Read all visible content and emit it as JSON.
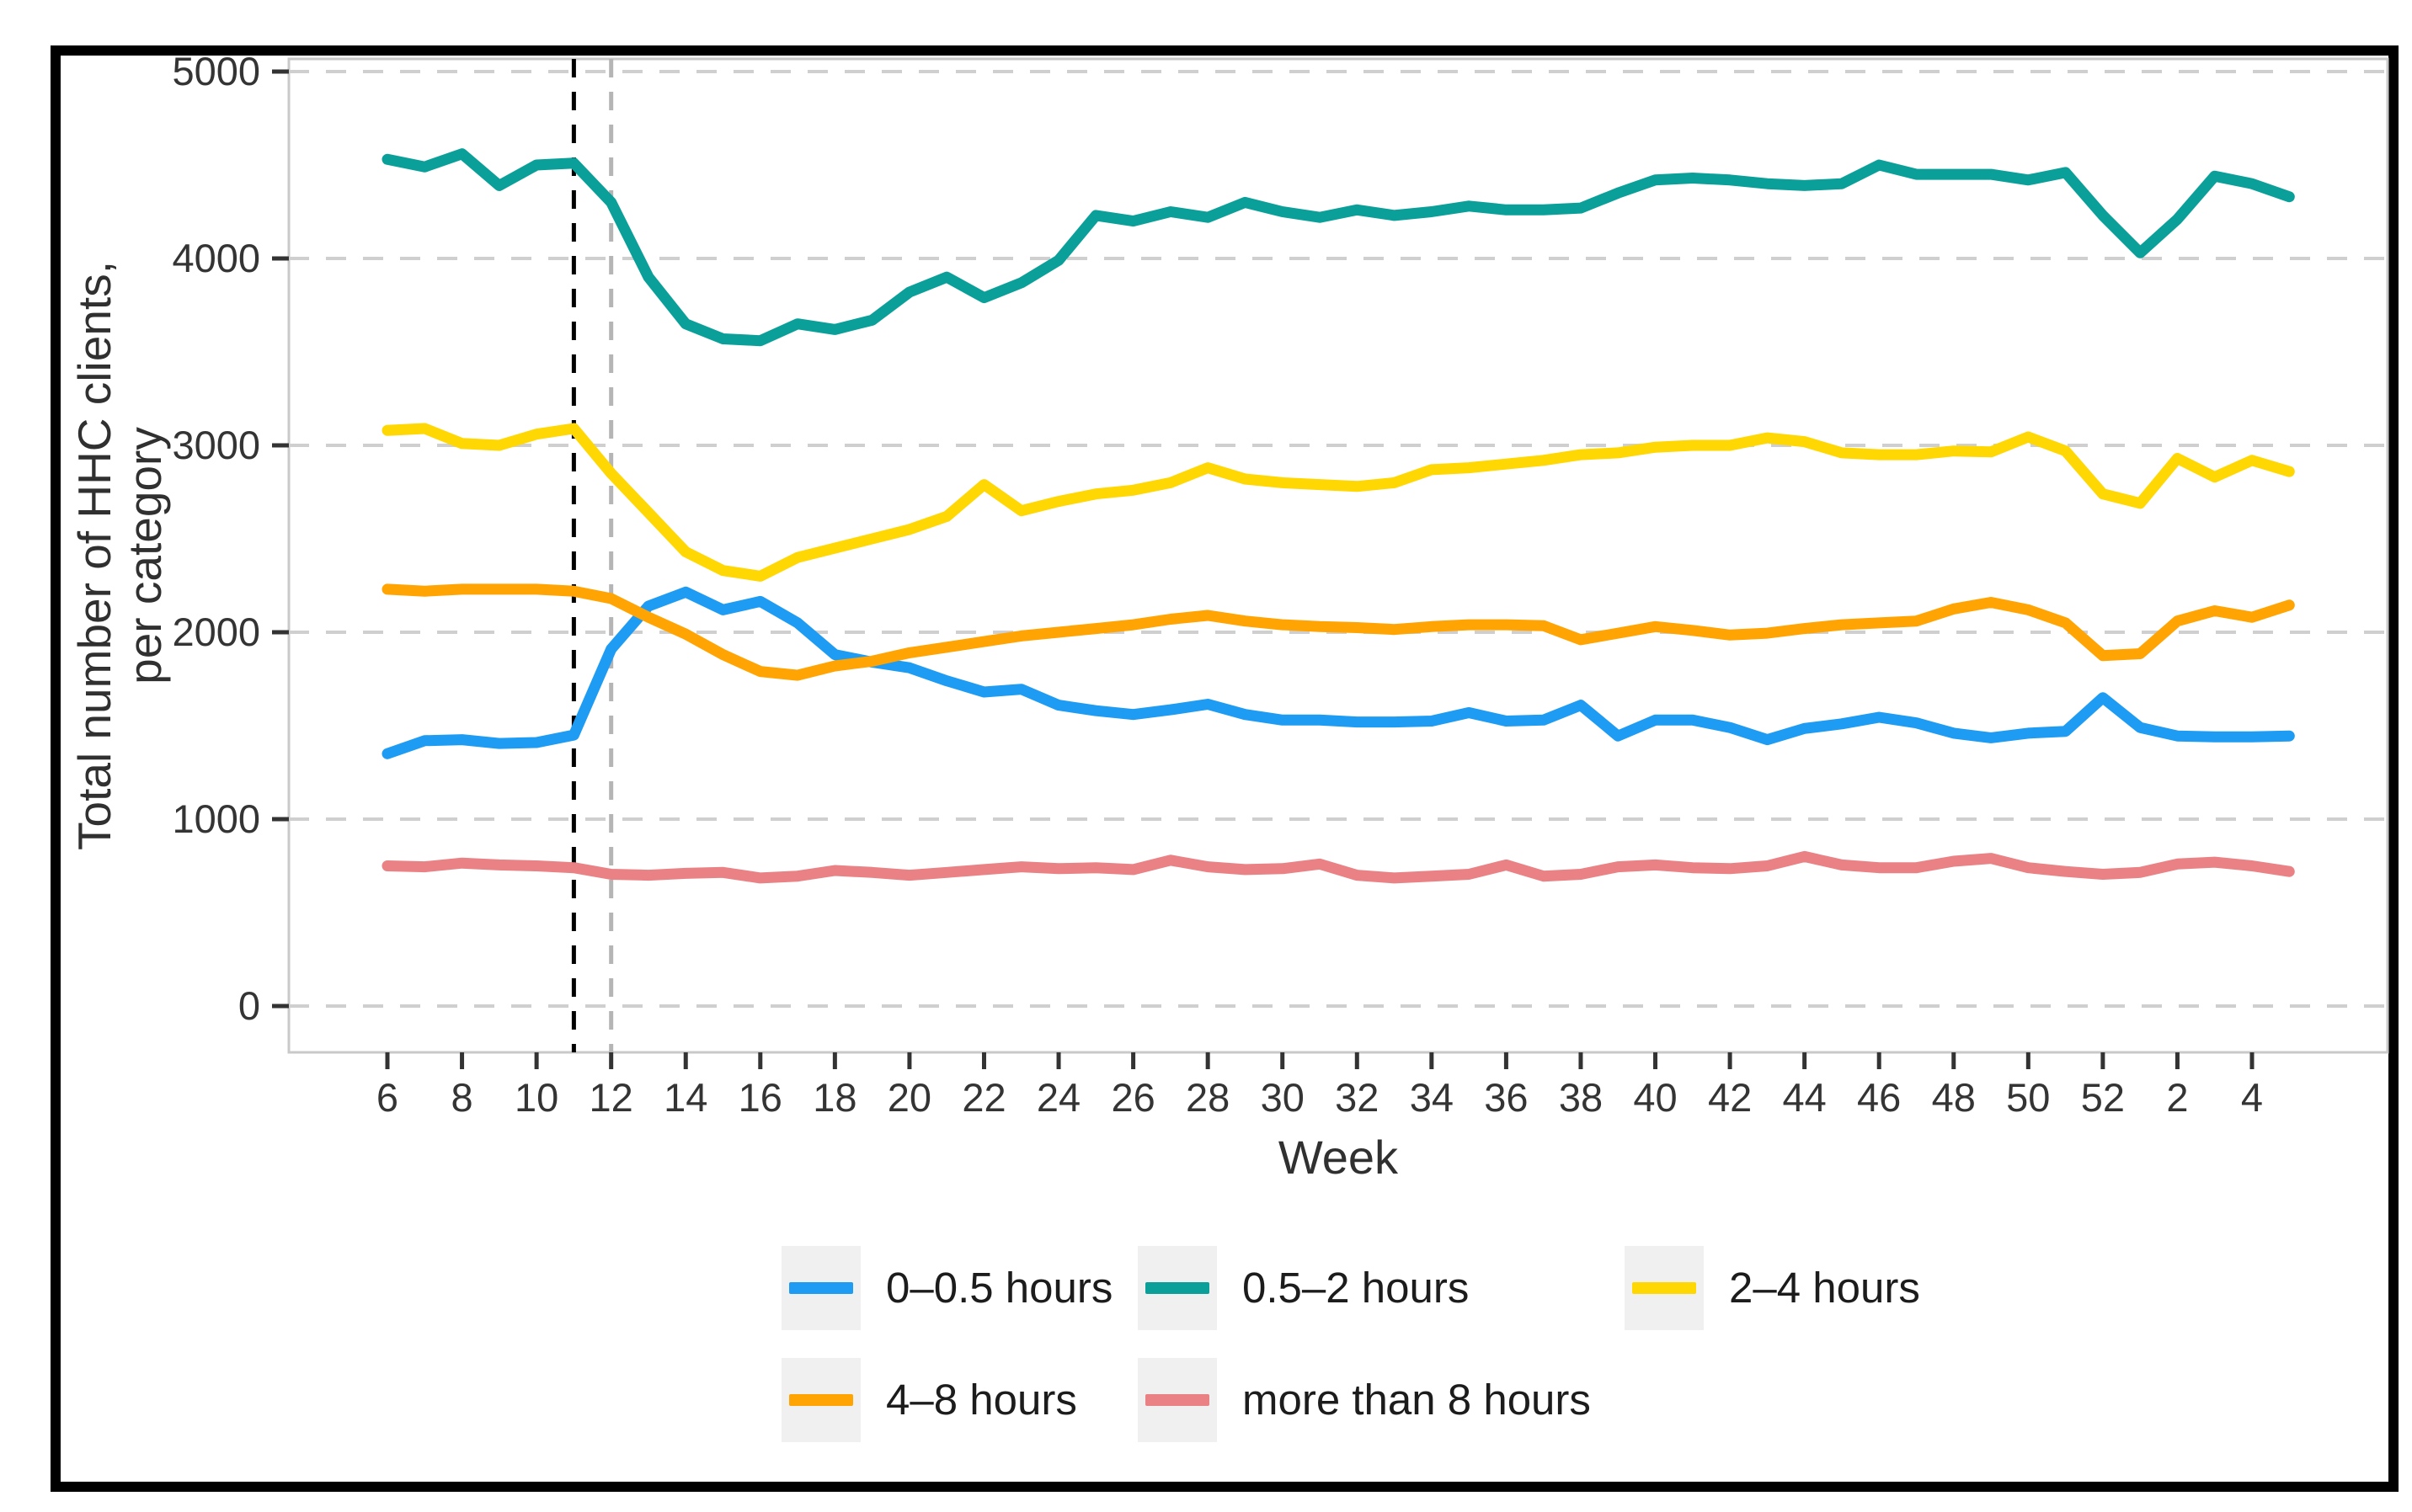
{
  "figure": {
    "xlabel": "Week",
    "ylabel_line1": "Total number of HHC clients,",
    "ylabel_line2": "per category"
  },
  "chart_data": {
    "type": "line",
    "title": "",
    "xlabel": "Week",
    "ylabel": "Total number of HHC clients, per category",
    "x": [
      "6",
      "7",
      "8",
      "9",
      "10",
      "11",
      "12",
      "13",
      "14",
      "15",
      "16",
      "17",
      "18",
      "19",
      "20",
      "21",
      "22",
      "23",
      "24",
      "25",
      "26",
      "27",
      "28",
      "29",
      "30",
      "31",
      "32",
      "33",
      "34",
      "35",
      "36",
      "37",
      "38",
      "39",
      "40",
      "41",
      "42",
      "43",
      "44",
      "45",
      "46",
      "47",
      "48",
      "49",
      "50",
      "51",
      "52",
      "1",
      "2",
      "3",
      "4",
      "5"
    ],
    "x_tick_labels": [
      "6",
      "8",
      "10",
      "12",
      "14",
      "16",
      "18",
      "20",
      "22",
      "24",
      "26",
      "28",
      "30",
      "32",
      "34",
      "36",
      "38",
      "40",
      "42",
      "44",
      "46",
      "48",
      "50",
      "52",
      "2",
      "4"
    ],
    "yticks": [
      0,
      1000,
      2000,
      3000,
      4000,
      5000
    ],
    "ylim": [
      0,
      5000
    ],
    "grid": "horizontal-dashed",
    "legend_position": "bottom",
    "event_lines": [
      {
        "x": "11",
        "color": "#000000",
        "style": "dashed"
      },
      {
        "x": "12",
        "color": "#b5b5b5",
        "style": "dashed"
      }
    ],
    "series": [
      {
        "name": "0–0.5 hours",
        "color": "#1e9bf2",
        "values": [
          1350,
          1420,
          1425,
          1405,
          1410,
          1450,
          1910,
          2140,
          2215,
          2120,
          2165,
          2050,
          1880,
          1840,
          1810,
          1740,
          1680,
          1695,
          1610,
          1580,
          1560,
          1585,
          1615,
          1560,
          1530,
          1530,
          1520,
          1520,
          1525,
          1570,
          1525,
          1530,
          1610,
          1445,
          1530,
          1530,
          1490,
          1425,
          1485,
          1510,
          1545,
          1515,
          1460,
          1435,
          1460,
          1470,
          1650,
          1490,
          1445,
          1440,
          1440,
          1445
        ]
      },
      {
        "name": "0.5–2 hours",
        "color": "#0aa099",
        "values": [
          4530,
          4490,
          4560,
          4390,
          4500,
          4510,
          4300,
          3900,
          3650,
          3570,
          3560,
          3650,
          3620,
          3670,
          3820,
          3900,
          3790,
          3870,
          3990,
          4230,
          4200,
          4250,
          4220,
          4300,
          4250,
          4220,
          4260,
          4230,
          4250,
          4280,
          4260,
          4260,
          4270,
          4350,
          4420,
          4430,
          4420,
          4400,
          4390,
          4400,
          4500,
          4450,
          4450,
          4450,
          4420,
          4460,
          4230,
          4030,
          4210,
          4440,
          4400,
          4330
        ]
      },
      {
        "name": "2–4 hours",
        "color": "#ffd702",
        "values": [
          3080,
          3090,
          3010,
          3000,
          3060,
          3090,
          2850,
          2640,
          2430,
          2330,
          2300,
          2400,
          2450,
          2500,
          2550,
          2620,
          2790,
          2650,
          2700,
          2740,
          2760,
          2800,
          2880,
          2820,
          2800,
          2790,
          2780,
          2800,
          2870,
          2880,
          2900,
          2920,
          2950,
          2960,
          2990,
          3000,
          3000,
          3040,
          3020,
          2960,
          2950,
          2950,
          2970,
          2965,
          3045,
          2970,
          2740,
          2690,
          2930,
          2830,
          2920,
          2860
        ]
      },
      {
        "name": "4–8 hours",
        "color": "#ffa402",
        "values": [
          2230,
          2220,
          2230,
          2230,
          2230,
          2220,
          2180,
          2080,
          1990,
          1880,
          1790,
          1770,
          1820,
          1845,
          1890,
          1920,
          1950,
          1980,
          2000,
          2020,
          2040,
          2070,
          2090,
          2060,
          2040,
          2030,
          2025,
          2015,
          2030,
          2040,
          2040,
          2035,
          1960,
          1995,
          2030,
          2010,
          1985,
          1995,
          2020,
          2040,
          2050,
          2060,
          2125,
          2160,
          2120,
          2050,
          1875,
          1885,
          2060,
          2115,
          2080,
          2145
        ]
      },
      {
        "name": "more than 8 hours",
        "color": "#ea8184",
        "values": [
          750,
          745,
          765,
          755,
          750,
          740,
          705,
          700,
          710,
          715,
          685,
          695,
          725,
          715,
          700,
          715,
          730,
          745,
          735,
          740,
          730,
          780,
          745,
          730,
          735,
          760,
          700,
          685,
          695,
          705,
          755,
          695,
          705,
          745,
          755,
          740,
          735,
          750,
          800,
          755,
          740,
          740,
          775,
          790,
          740,
          720,
          705,
          715,
          760,
          770,
          750,
          720
        ]
      }
    ]
  }
}
